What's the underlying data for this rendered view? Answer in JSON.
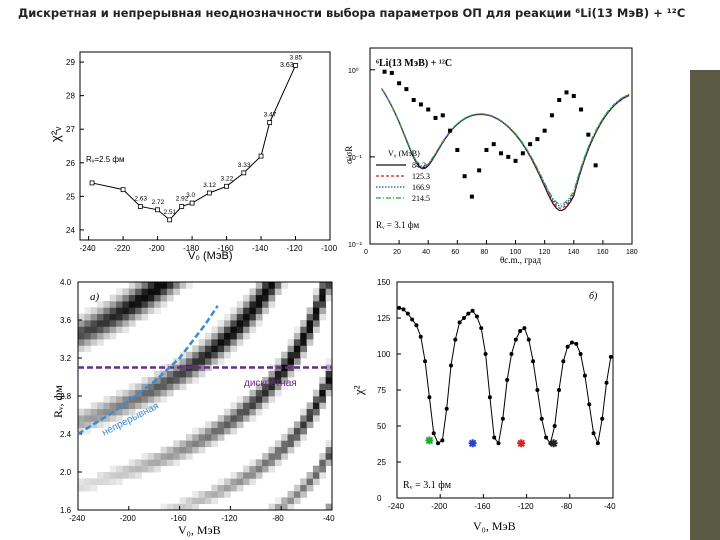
{
  "slide": {
    "title": "Дискретная и непрерывная неоднозначности выбора параметров ОП для реакции ⁶Li(13 МэВ) + ¹²C"
  },
  "panel_chi_curve": {
    "ylabel": "χ²ᵥ",
    "xlabel": "V₀ (МэВ)",
    "annotation": "Rᵥ=2.5 фм",
    "chart_data": {
      "type": "line",
      "x": [
        -238,
        -220,
        -210,
        -200,
        -193,
        -186,
        -180,
        -170,
        -160,
        -150,
        -140,
        -135,
        -120
      ],
      "values": [
        25.4,
        25.2,
        24.7,
        24.6,
        24.3,
        24.7,
        24.8,
        25.1,
        25.3,
        25.7,
        26.2,
        27.2,
        28.9
      ],
      "point_labels": [
        "",
        "",
        "2.63",
        "2.72",
        "2.51",
        "2.92",
        "3.0",
        "3.12",
        "3.22",
        "3.33",
        "",
        "3.47",
        "3.85"
      ],
      "xticks": [
        "-240",
        "-220",
        "-200",
        "-180",
        "-160",
        "-140",
        "-120",
        "-100"
      ],
      "yticks": [
        "24",
        "25",
        "26",
        "27",
        "28",
        "29"
      ],
      "extra_label": "3.63",
      "xlim": [
        -245,
        -100
      ],
      "ylim": [
        23.7,
        29.3
      ]
    }
  },
  "panel_cross_section": {
    "reaction_label": "⁶Li(13 МэВ) + ¹²C",
    "ylabel": "σ/σR",
    "xlabel": "θc.m., град",
    "legend_title": "V₀ (МэВ)",
    "legend": [
      {
        "label": "84.2",
        "color": "#111111"
      },
      {
        "label": "125.3",
        "color": "#cc2222"
      },
      {
        "label": "166.9",
        "color": "#2244cc"
      },
      {
        "label": "214.5",
        "color": "#22aa33"
      }
    ],
    "radius_note": "Rᵥ = 3.1 фм",
    "chart_data": {
      "type": "scatter",
      "x_points": [
        10,
        15,
        20,
        25,
        30,
        35,
        40,
        45,
        50,
        55,
        60,
        65,
        70,
        75,
        80,
        85,
        90,
        95,
        100,
        105,
        110,
        115,
        120,
        125,
        130,
        135,
        140,
        145,
        150,
        155
      ],
      "y_points": [
        0.95,
        0.92,
        0.7,
        0.6,
        0.45,
        0.4,
        0.35,
        0.28,
        0.3,
        0.2,
        0.12,
        0.06,
        0.035,
        0.07,
        0.12,
        0.14,
        0.11,
        0.1,
        0.09,
        0.11,
        0.14,
        0.16,
        0.2,
        0.3,
        0.45,
        0.55,
        0.5,
        0.35,
        0.18,
        0.08
      ],
      "xticks": [
        "0",
        "20",
        "40",
        "60",
        "80",
        "100",
        "120",
        "140",
        "160",
        "180"
      ],
      "yticks": [
        "10⁻²",
        "10⁻¹",
        "10⁰"
      ],
      "xlim": [
        0,
        180
      ],
      "ylim_log10": [
        -2,
        0.25
      ]
    }
  },
  "panel_map": {
    "panel_letter": "a)",
    "ylabel": "Rᵥ, фм",
    "xlabel": "V₀, МэВ",
    "label_discrete": "дискретная",
    "label_continuous": "непрерывная",
    "chart_data": {
      "type": "heatmap",
      "xticks": [
        "-240",
        "-200",
        "-160",
        "-120",
        "-80",
        "-40"
      ],
      "yticks": [
        "1.6",
        "2.0",
        "2.4",
        "2.8",
        "3.2",
        "3.6",
        "4.0"
      ],
      "xlim": [
        -240,
        -40
      ],
      "ylim": [
        1.6,
        4.0
      ],
      "discrete_line_R": 3.1,
      "continuous_curve": [
        [
          -240,
          2.4
        ],
        [
          -210,
          2.65
        ],
        [
          -180,
          2.95
        ],
        [
          -160,
          3.2
        ],
        [
          -140,
          3.55
        ],
        [
          -130,
          3.75
        ]
      ]
    }
  },
  "panel_chi_scan": {
    "panel_letter": "б)",
    "ylabel": "χ²",
    "xlabel": "V₀, МэВ",
    "radius_note": "Rᵥ = 3.1 фм",
    "chart_data": {
      "type": "line",
      "x": [
        -238,
        -234,
        -230,
        -226,
        -222,
        -218,
        -214,
        -210,
        -206,
        -202,
        -198,
        -194,
        -190,
        -186,
        -182,
        -178,
        -174,
        -170,
        -166,
        -162,
        -158,
        -154,
        -150,
        -146,
        -142,
        -138,
        -134,
        -130,
        -126,
        -122,
        -118,
        -114,
        -110,
        -106,
        -102,
        -98,
        -94,
        -90,
        -86,
        -82,
        -78,
        -74,
        -70,
        -66,
        -62,
        -58,
        -54,
        -50,
        -46,
        -42
      ],
      "values": [
        132,
        131,
        128,
        124,
        120,
        112,
        95,
        70,
        45,
        38,
        40,
        62,
        92,
        110,
        122,
        125,
        128,
        130,
        126,
        118,
        100,
        70,
        42,
        38,
        55,
        82,
        100,
        110,
        116,
        118,
        110,
        95,
        75,
        55,
        42,
        38,
        50,
        75,
        95,
        105,
        108,
        107,
        100,
        85,
        65,
        45,
        38,
        55,
        80,
        98
      ],
      "markers": [
        {
          "x": -210,
          "y": 40,
          "color": "#22aa33"
        },
        {
          "x": -170,
          "y": 38,
          "color": "#2244cc"
        },
        {
          "x": -125,
          "y": 38,
          "color": "#dd2222"
        },
        {
          "x": -95,
          "y": 38,
          "color": "#222222"
        }
      ],
      "xticks": [
        "-240",
        "-200",
        "-160",
        "-120",
        "-80",
        "-40"
      ],
      "yticks": [
        "0",
        "25",
        "50",
        "75",
        "100",
        "125",
        "150"
      ],
      "xlim": [
        -240,
        -40
      ],
      "ylim": [
        0,
        150
      ]
    }
  }
}
